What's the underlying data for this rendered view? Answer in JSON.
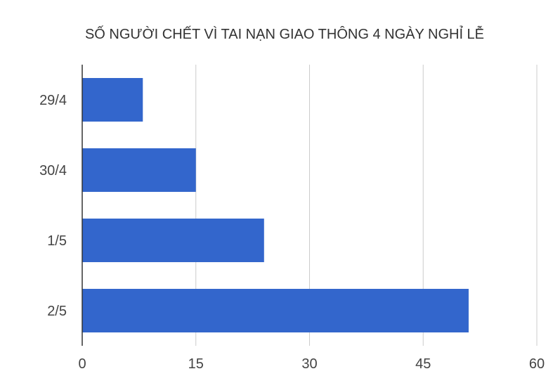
{
  "chart_data": {
    "type": "bar",
    "orientation": "horizontal",
    "title": "SỐ NGƯỜI CHẾT VÌ TAI NẠN GIAO THÔNG 4 NGÀY NGHỈ LỄ",
    "categories": [
      "29/4",
      "30/4",
      "1/5",
      "2/5"
    ],
    "values": [
      8,
      15,
      24,
      51
    ],
    "xticks": [
      0,
      15,
      30,
      45,
      60
    ],
    "xlim": [
      0,
      60
    ],
    "grid": true,
    "bar_color": "#3366cc"
  }
}
